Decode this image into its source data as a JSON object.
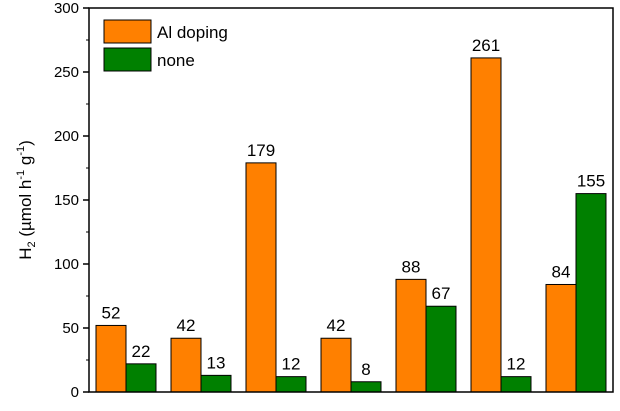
{
  "chart_data": {
    "type": "bar",
    "categories": [
      "",
      "",
      "",
      "",
      "",
      "",
      ""
    ],
    "series": [
      {
        "name": "Al doping",
        "values": [
          52,
          42,
          179,
          42,
          88,
          261,
          84
        ],
        "color": "#FF8000"
      },
      {
        "name": "none",
        "values": [
          22,
          13,
          12,
          8,
          67,
          12,
          155
        ],
        "color": "#008000"
      }
    ],
    "data_labels": {
      "Al doping": [
        "52",
        "42",
        "179",
        "42",
        "88",
        "261",
        "84"
      ],
      "none": [
        "22",
        "13",
        "12",
        "8",
        "67",
        "12",
        "155"
      ]
    },
    "title": "",
    "xlabel": "",
    "ylabel": {
      "base": "H",
      "base_sub": "2",
      "open": " (µmol h",
      "sup1": "-1",
      "mid": " g",
      "sup2": "-1",
      "close": ")"
    },
    "ylim": [
      0,
      300
    ],
    "yticks": [
      0,
      50,
      100,
      150,
      200,
      250,
      300
    ],
    "ytick_labels": [
      "0",
      "50",
      "100",
      "150",
      "200",
      "250",
      "300"
    ],
    "legend_position": "top-left",
    "grid": false
  }
}
